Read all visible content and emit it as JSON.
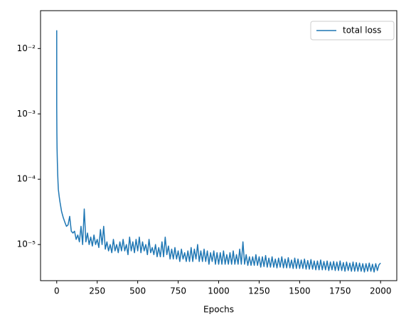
{
  "chart_data": {
    "type": "line",
    "xlabel": "Epochs",
    "yscale": "log",
    "legend": "upper right",
    "x": [
      0,
      0,
      1,
      2,
      4,
      6,
      8,
      10,
      15,
      20,
      25,
      30,
      40,
      50,
      60,
      70,
      80,
      90,
      100,
      110,
      120,
      130,
      140,
      150,
      160,
      170,
      180,
      190,
      200,
      210,
      220,
      230,
      240,
      250,
      260,
      270,
      280,
      290,
      300,
      310,
      320,
      330,
      340,
      350,
      360,
      370,
      380,
      390,
      400,
      410,
      420,
      430,
      440,
      450,
      460,
      470,
      480,
      490,
      500,
      510,
      520,
      530,
      540,
      550,
      560,
      570,
      580,
      590,
      600,
      610,
      620,
      630,
      640,
      650,
      660,
      670,
      680,
      690,
      700,
      710,
      720,
      730,
      740,
      750,
      760,
      770,
      780,
      790,
      800,
      810,
      820,
      830,
      840,
      850,
      860,
      870,
      880,
      890,
      900,
      910,
      920,
      930,
      940,
      950,
      960,
      970,
      980,
      990,
      1000,
      1010,
      1020,
      1030,
      1040,
      1050,
      1060,
      1070,
      1080,
      1090,
      1100,
      1110,
      1120,
      1130,
      1140,
      1150,
      1160,
      1170,
      1180,
      1190,
      1200,
      1210,
      1220,
      1230,
      1240,
      1250,
      1260,
      1270,
      1280,
      1290,
      1300,
      1310,
      1320,
      1330,
      1340,
      1350,
      1360,
      1370,
      1380,
      1390,
      1400,
      1410,
      1420,
      1430,
      1440,
      1450,
      1460,
      1470,
      1480,
      1490,
      1500,
      1510,
      1520,
      1530,
      1540,
      1550,
      1560,
      1570,
      1580,
      1590,
      1600,
      1610,
      1620,
      1630,
      1640,
      1650,
      1660,
      1670,
      1680,
      1690,
      1700,
      1710,
      1720,
      1730,
      1740,
      1750,
      1760,
      1770,
      1780,
      1790,
      1800,
      1810,
      1820,
      1830,
      1840,
      1850,
      1860,
      1870,
      1880,
      1890,
      1900,
      1910,
      1920,
      1930,
      1940,
      1950,
      1960,
      1970,
      1980,
      1990,
      2000
    ],
    "series": [
      {
        "name": "total loss",
        "color": "#1f77b4",
        "values": [
          0.019,
          0.0013,
          0.0005,
          0.0003,
          0.00018,
          0.00012,
          9e-05,
          7e-05,
          5.5e-05,
          4.5e-05,
          3.8e-05,
          3.2e-05,
          2.6e-05,
          2.2e-05,
          1.9e-05,
          2e-05,
          2.7e-05,
          1.6e-05,
          1.5e-05,
          1.6e-05,
          1.2e-05,
          1.4e-05,
          1.1e-05,
          1.9e-05,
          1e-05,
          3.5e-05,
          1.1e-05,
          1.5e-05,
          1e-05,
          1.3e-05,
          9.5e-06,
          1.4e-05,
          1e-05,
          1.2e-05,
          9e-06,
          1.7e-05,
          1e-05,
          1.9e-05,
          8.5e-06,
          1.1e-05,
          8e-06,
          1e-05,
          7.5e-06,
          1.2e-05,
          8e-06,
          1e-05,
          7.5e-06,
          1.1e-05,
          8e-06,
          1.2e-05,
          8e-06,
          1e-05,
          7e-06,
          1.3e-05,
          8e-06,
          1.1e-05,
          7.5e-06,
          1.2e-05,
          8e-06,
          1.3e-05,
          7.5e-06,
          1.1e-05,
          8e-06,
          1e-05,
          7e-06,
          1.2e-05,
          7.5e-06,
          9e-06,
          7e-06,
          1e-05,
          6.5e-06,
          9e-06,
          6.5e-06,
          1.1e-05,
          6.5e-06,
          1.3e-05,
          7e-06,
          9.5e-06,
          6e-06,
          8.5e-06,
          6e-06,
          9e-06,
          6e-06,
          8e-06,
          5.5e-06,
          8.5e-06,
          6e-06,
          7.5e-06,
          5.5e-06,
          8e-06,
          5.5e-06,
          9e-06,
          5.5e-06,
          8.5e-06,
          6e-06,
          1e-05,
          5.5e-06,
          8e-06,
          5.5e-06,
          8.5e-06,
          5.5e-06,
          8e-06,
          5e-06,
          7.5e-06,
          5.5e-06,
          8e-06,
          5e-06,
          7.5e-06,
          5e-06,
          7.5e-06,
          5e-06,
          8e-06,
          5e-06,
          7e-06,
          5e-06,
          7.5e-06,
          5e-06,
          8e-06,
          5e-06,
          7e-06,
          5e-06,
          8.5e-06,
          5e-06,
          1.1e-05,
          5e-06,
          7e-06,
          4.8e-06,
          6.5e-06,
          4.8e-06,
          6.5e-06,
          4.8e-06,
          7e-06,
          4.8e-06,
          6.5e-06,
          4.5e-06,
          6.5e-06,
          4.6e-06,
          6.8e-06,
          4.5e-06,
          6.2e-06,
          4.5e-06,
          6.5e-06,
          4.5e-06,
          6e-06,
          4.4e-06,
          6.2e-06,
          4.5e-06,
          6.5e-06,
          4.4e-06,
          6e-06,
          4.4e-06,
          6.3e-06,
          4.4e-06,
          5.8e-06,
          4.3e-06,
          6.2e-06,
          4.3e-06,
          6e-06,
          4.3e-06,
          5.8e-06,
          4.3e-06,
          6e-06,
          4.2e-06,
          5.7e-06,
          4.2e-06,
          5.9e-06,
          4.2e-06,
          5.6e-06,
          4.1e-06,
          5.6e-06,
          4.1e-06,
          5.8e-06,
          4.1e-06,
          5.5e-06,
          4.1e-06,
          5.6e-06,
          4e-06,
          5.4e-06,
          4.1e-06,
          5.5e-06,
          4e-06,
          5.4e-06,
          4e-06,
          5.6e-06,
          4e-06,
          5.3e-06,
          3.9e-06,
          5.4e-06,
          4e-06,
          5.2e-06,
          3.9e-06,
          5.4e-06,
          3.9e-06,
          5.3e-06,
          3.9e-06,
          5.2e-06,
          3.9e-06,
          5.1e-06,
          3.8e-06,
          5.1e-06,
          3.9e-06,
          5.2e-06,
          3.9e-06,
          5e-06,
          3.8e-06,
          5.1e-06,
          4e-06,
          4.9e-06,
          5.2e-06
        ]
      }
    ],
    "xlim": [
      -100,
      2100
    ],
    "xticks": [
      0,
      250,
      500,
      750,
      1000,
      1250,
      1500,
      1750,
      2000
    ],
    "ylim": [
      2.8e-06,
      0.038
    ],
    "yticks": [
      {
        "value": 1e-05,
        "label": "10⁻⁵"
      },
      {
        "value": 0.0001,
        "label": "10⁻⁴"
      },
      {
        "value": 0.001,
        "label": "10⁻³"
      },
      {
        "value": 0.01,
        "label": "10⁻²"
      }
    ]
  }
}
